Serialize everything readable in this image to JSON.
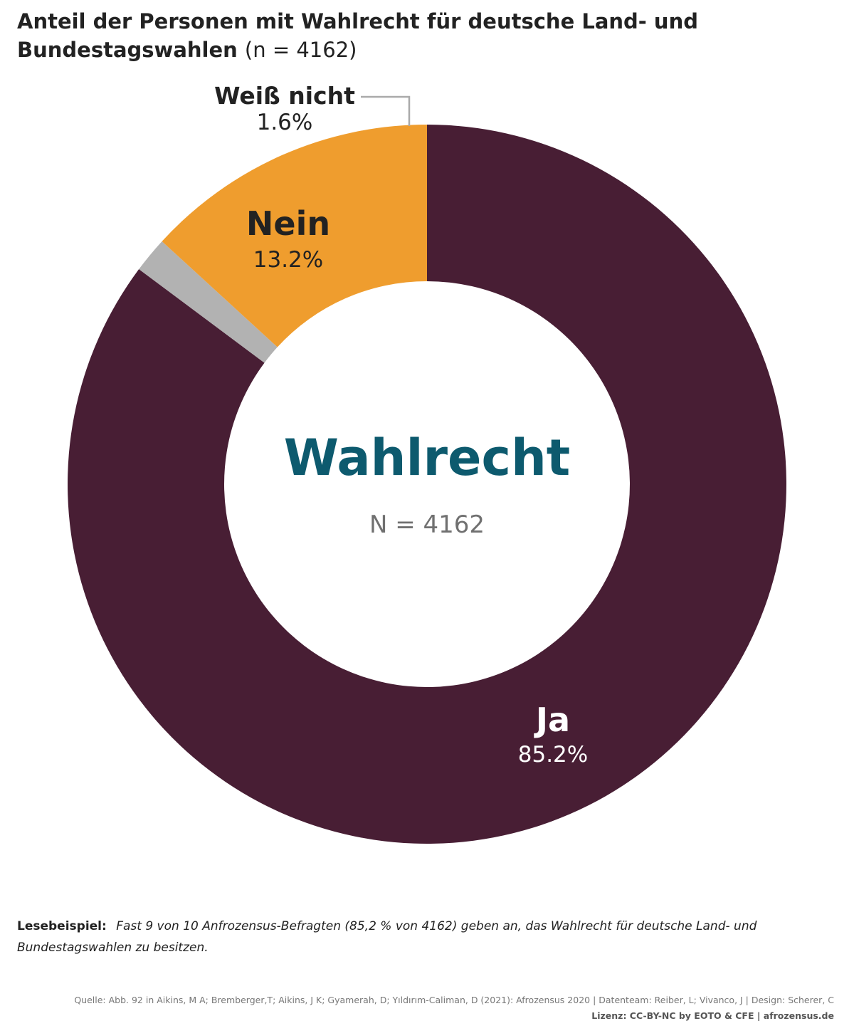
{
  "header": {
    "title": "Anteil der Personen mit Wahlrecht für deutsche Land- und Bundestagswahlen",
    "n_note": "(n = 4162)"
  },
  "chart_data": {
    "type": "pie",
    "variant": "donut",
    "center_title": "Wahlrecht",
    "center_subtitle": "N = 4162",
    "slices": [
      {
        "label": "Ja",
        "value": 85.2,
        "value_label": "85.2%",
        "color": "#481e34"
      },
      {
        "label": "Weiß nicht",
        "value": 1.6,
        "value_label": "1.6%",
        "color": "#b2b2b2"
      },
      {
        "label": "Nein",
        "value": 13.2,
        "value_label": "13.2%",
        "color": "#ef9d2e"
      }
    ],
    "colors": {
      "center_title": "#0d5a6e",
      "center_subtitle": "#707070"
    }
  },
  "footer": {
    "reading_label": "Lesebeispiel:",
    "reading_text": "Fast 9 von 10 Anfrozensus-Befragten (85,2 % von 4162) geben an, das Wahlrecht für deutsche Land- und Bundestagswahlen zu besitzen.",
    "source": "Quelle: Abb. 92 in Aikins, M A; Bremberger,T; Aikins, J K; Gyamerah, D; Yıldırım-Caliman, D (2021): Afrozensus 2020 | Datenteam: Reiber, L; Vivanco, J | Design: Scherer, C",
    "license": "Lizenz: CC-BY-NC by EOTO & CFE | afrozensus.de"
  }
}
